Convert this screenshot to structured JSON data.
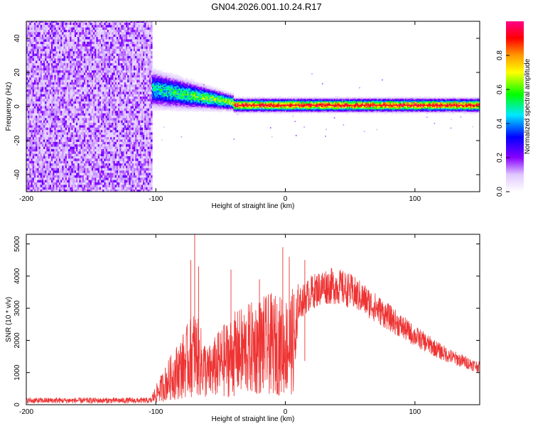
{
  "title": "GN04.2026.001.10.24.R17",
  "chart_data": [
    {
      "type": "heatmap",
      "xlabel": "Height of straight line (km)",
      "ylabel": "Frequency (Hz)",
      "xlim": [
        -200,
        150
      ],
      "ylim": [
        -50,
        50
      ],
      "x_ticks": [
        -200,
        -100,
        0,
        100
      ],
      "y_ticks": [
        -40,
        -20,
        0,
        20,
        40
      ],
      "colorbar": {
        "label": "Normalized spectral amplitude",
        "range": [
          0,
          1
        ],
        "ticks": [
          0.0,
          0.2,
          0.4,
          0.6,
          0.8
        ],
        "tick_labels": [
          "0.0",
          "0.2",
          "0.4",
          "0.6",
          "0.8"
        ]
      },
      "regions": [
        {
          "name": "noise",
          "x_range": [
            -200,
            -103
          ],
          "freq_range": [
            -50,
            50
          ],
          "amplitude": 0.2
        },
        {
          "name": "signal-wide",
          "x_range": [
            -103,
            -40
          ],
          "freq_center_start": 10,
          "freq_center_end": 2,
          "width_start": 10,
          "width_end": 4,
          "amplitude": 0.5
        },
        {
          "name": "signal-narrow",
          "x_range": [
            -40,
            150
          ],
          "freq_center": 0.5,
          "width": 2,
          "amplitude": 0.95
        }
      ]
    },
    {
      "type": "line",
      "xlabel": "Height of straight line (km)",
      "ylabel": "SNR (10 * v/v)",
      "xlim": [
        -200,
        150
      ],
      "ylim": [
        0,
        5300
      ],
      "x_ticks": [
        -200,
        -100,
        0,
        100
      ],
      "y_ticks": [
        0,
        1000,
        2000,
        3000,
        4000,
        5000
      ],
      "color": "#ee3333",
      "envelope": [
        {
          "x": -200,
          "y": 150
        },
        {
          "x": -105,
          "y": 150
        },
        {
          "x": -100,
          "y": 500
        },
        {
          "x": -90,
          "y": 1200
        },
        {
          "x": -80,
          "y": 1800
        },
        {
          "x": -70,
          "y": 2500
        },
        {
          "x": -60,
          "y": 1500
        },
        {
          "x": -50,
          "y": 2000
        },
        {
          "x": -40,
          "y": 2400
        },
        {
          "x": -30,
          "y": 2600
        },
        {
          "x": -20,
          "y": 2800
        },
        {
          "x": -10,
          "y": 2900
        },
        {
          "x": 0,
          "y": 2800
        },
        {
          "x": 10,
          "y": 3200
        },
        {
          "x": 20,
          "y": 3600
        },
        {
          "x": 30,
          "y": 3800
        },
        {
          "x": 40,
          "y": 3800
        },
        {
          "x": 50,
          "y": 3650
        },
        {
          "x": 60,
          "y": 3400
        },
        {
          "x": 70,
          "y": 3100
        },
        {
          "x": 80,
          "y": 2800
        },
        {
          "x": 90,
          "y": 2500
        },
        {
          "x": 100,
          "y": 2200
        },
        {
          "x": 110,
          "y": 1950
        },
        {
          "x": 120,
          "y": 1700
        },
        {
          "x": 130,
          "y": 1500
        },
        {
          "x": 140,
          "y": 1350
        },
        {
          "x": 150,
          "y": 1200
        }
      ],
      "spikes": [
        {
          "x": -73,
          "y": 4500
        },
        {
          "x": -70,
          "y": 5300
        },
        {
          "x": -67,
          "y": 4300
        },
        {
          "x": -42,
          "y": 4200
        },
        {
          "x": -20,
          "y": 3900
        },
        {
          "x": -2,
          "y": 4900
        },
        {
          "x": 3,
          "y": 4600
        },
        {
          "x": 15,
          "y": 4500
        }
      ]
    }
  ]
}
